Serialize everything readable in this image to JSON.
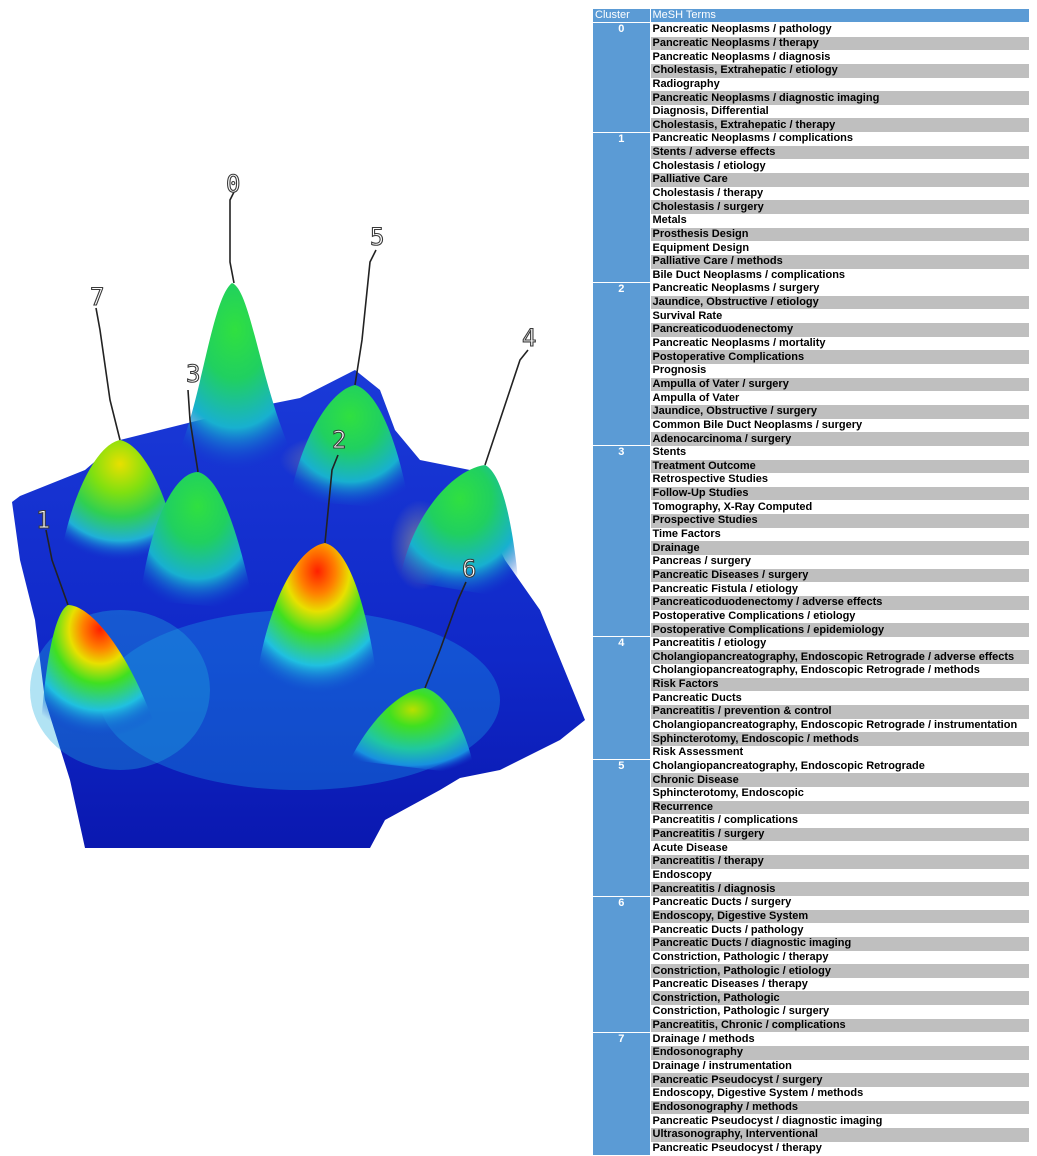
{
  "landscape": {
    "peak_labels": [
      "0",
      "1",
      "2",
      "3",
      "4",
      "5",
      "6",
      "7"
    ],
    "colors": {
      "low": "#1010c0",
      "mid": "#20c0e0",
      "green": "#30e040",
      "high": "#ff2000",
      "shadow": "#808080"
    }
  },
  "table": {
    "headers": {
      "cluster": "Cluster",
      "terms": "MeSH Terms"
    },
    "header_color": "#5b9bd5",
    "stripe_color": "#bfbfbf",
    "clusters": [
      {
        "id": "0",
        "terms": [
          "Pancreatic Neoplasms / pathology",
          "Pancreatic Neoplasms / therapy",
          "Pancreatic Neoplasms / diagnosis",
          "Cholestasis, Extrahepatic / etiology",
          "Radiography",
          "Pancreatic Neoplasms / diagnostic imaging",
          "Diagnosis, Differential",
          "Cholestasis, Extrahepatic / therapy"
        ]
      },
      {
        "id": "1",
        "terms": [
          "Pancreatic Neoplasms / complications",
          "Stents / adverse effects",
          "Cholestasis / etiology",
          "Palliative Care",
          "Cholestasis / therapy",
          "Cholestasis / surgery",
          "Metals",
          "Prosthesis Design",
          "Equipment Design",
          "Palliative Care / methods",
          "Bile Duct Neoplasms / complications"
        ]
      },
      {
        "id": "2",
        "terms": [
          "Pancreatic Neoplasms / surgery",
          "Jaundice, Obstructive / etiology",
          "Survival Rate",
          "Pancreaticoduodenectomy",
          "Pancreatic Neoplasms / mortality",
          "Postoperative Complications",
          "Prognosis",
          "Ampulla of Vater / surgery",
          "Ampulla of Vater",
          "Jaundice, Obstructive / surgery",
          "Common Bile Duct Neoplasms / surgery",
          "Adenocarcinoma / surgery"
        ]
      },
      {
        "id": "3",
        "terms": [
          "Stents",
          "Treatment Outcome",
          "Retrospective Studies",
          "Follow-Up Studies",
          "Tomography, X-Ray Computed",
          "Prospective Studies",
          "Time Factors",
          "Drainage",
          "Pancreas / surgery",
          "Pancreatic Diseases / surgery",
          "Pancreatic Fistula / etiology",
          "Pancreaticoduodenectomy / adverse effects",
          "Postoperative Complications / etiology",
          "Postoperative Complications / epidemiology"
        ]
      },
      {
        "id": "4",
        "terms": [
          "Pancreatitis / etiology",
          "Cholangiopancreatography, Endoscopic Retrograde / adverse effects",
          "Cholangiopancreatography, Endoscopic Retrograde / methods",
          "Risk Factors",
          "Pancreatic Ducts",
          "Pancreatitis / prevention & control",
          "Cholangiopancreatography, Endoscopic Retrograde / instrumentation",
          "Sphincterotomy, Endoscopic / methods",
          "Risk Assessment"
        ]
      },
      {
        "id": "5",
        "terms": [
          "Cholangiopancreatography, Endoscopic Retrograde",
          "Chronic Disease",
          "Sphincterotomy, Endoscopic",
          "Recurrence",
          "Pancreatitis / complications",
          "Pancreatitis / surgery",
          "Acute Disease",
          "Pancreatitis / therapy",
          "Endoscopy",
          "Pancreatitis / diagnosis"
        ]
      },
      {
        "id": "6",
        "terms": [
          "Pancreatic Ducts / surgery",
          "Endoscopy, Digestive System",
          "Pancreatic Ducts / pathology",
          "Pancreatic Ducts / diagnostic imaging",
          "Constriction, Pathologic / therapy",
          "Constriction, Pathologic / etiology",
          "Pancreatic Diseases / therapy",
          "Constriction, Pathologic",
          "Constriction, Pathologic / surgery",
          "Pancreatitis, Chronic / complications"
        ]
      },
      {
        "id": "7",
        "terms": [
          "Drainage / methods",
          "Endosonography",
          "Drainage / instrumentation",
          "Pancreatic Pseudocyst / surgery",
          "Endoscopy, Digestive System / methods",
          "Endosonography / methods",
          "Pancreatic Pseudocyst / diagnostic imaging",
          "Ultrasonography, Interventional",
          "Pancreatic Pseudocyst / therapy"
        ]
      }
    ]
  }
}
